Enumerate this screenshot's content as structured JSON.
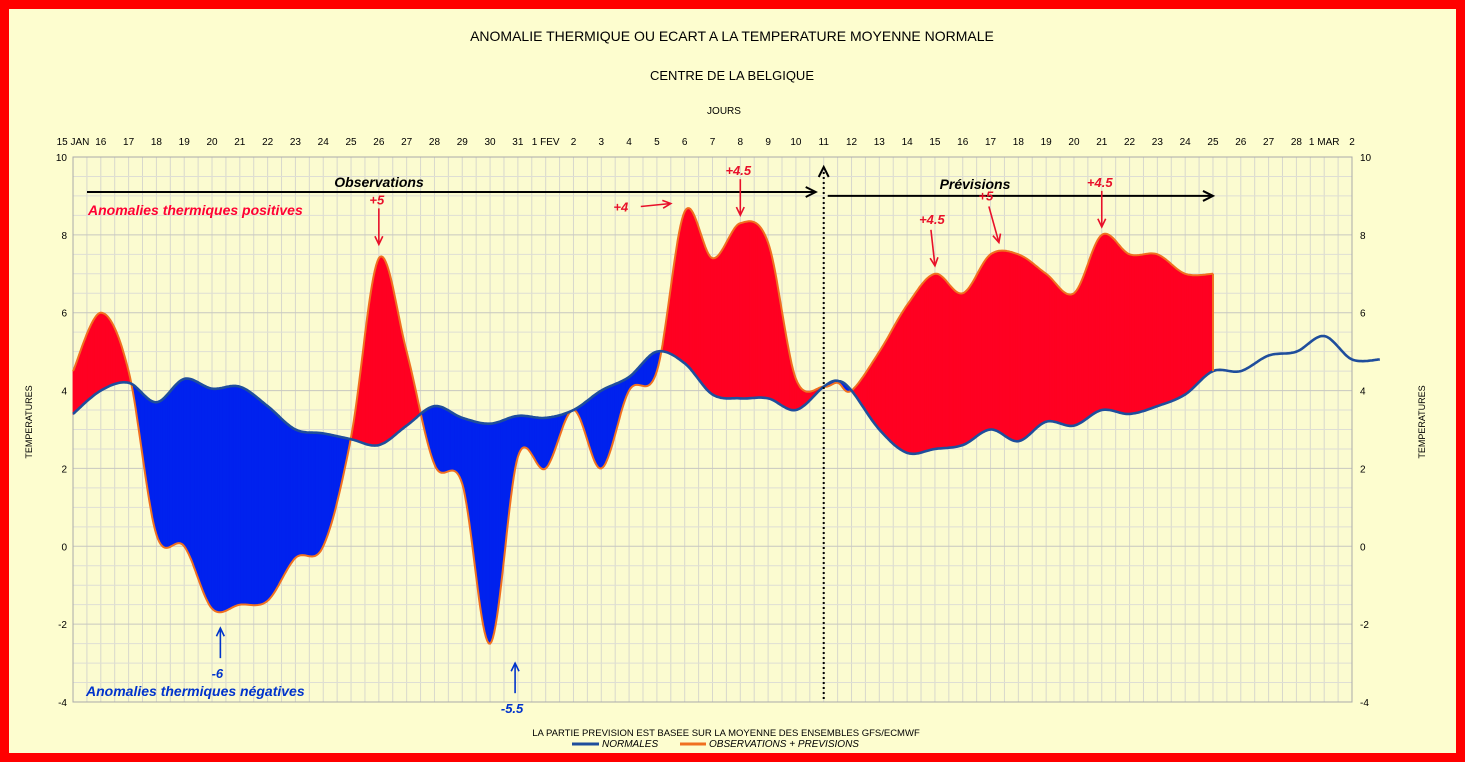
{
  "chart_data": {
    "type": "area",
    "title": "ANOMALIE THERMIQUE OU ECART A LA TEMPERATURE MOYENNE NORMALE",
    "subtitle": "CENTRE DE LA BELGIQUE",
    "xlabel": "JOURS",
    "ylabel": "TEMPERATURES",
    "ylim": [
      -4,
      10
    ],
    "yticks": [
      -4,
      -2,
      0,
      2,
      4,
      6,
      8,
      10
    ],
    "grid": true,
    "x_tick_labels": [
      "15 JAN",
      "16",
      "17",
      "18",
      "19",
      "20",
      "21",
      "22",
      "23",
      "24",
      "25",
      "26",
      "27",
      "28",
      "29",
      "30",
      "31",
      "1 FEV",
      "2",
      "3",
      "4",
      "5",
      "6",
      "7",
      "8",
      "9",
      "10",
      "11",
      "12",
      "13",
      "14",
      "15",
      "16",
      "17",
      "18",
      "19",
      "20",
      "21",
      "22",
      "23",
      "24",
      "25",
      "26",
      "27",
      "28",
      "1 MAR",
      "2"
    ],
    "x_range": [
      0,
      46
    ],
    "forecast_start": 27,
    "series": [
      {
        "name": "NORMALES",
        "color": "#1f4e9c",
        "points": [
          [
            0,
            3.4
          ],
          [
            1,
            4.0
          ],
          [
            2,
            4.2
          ],
          [
            3,
            3.7
          ],
          [
            4,
            4.3
          ],
          [
            5,
            4.05
          ],
          [
            6,
            4.1
          ],
          [
            7,
            3.6
          ],
          [
            8,
            3.0
          ],
          [
            9,
            2.9
          ],
          [
            10,
            2.75
          ],
          [
            11,
            2.6
          ],
          [
            12,
            3.1
          ],
          [
            13,
            3.6
          ],
          [
            14,
            3.3
          ],
          [
            15,
            3.15
          ],
          [
            16,
            3.35
          ],
          [
            17,
            3.3
          ],
          [
            18,
            3.5
          ],
          [
            19,
            4.0
          ],
          [
            20,
            4.35
          ],
          [
            21,
            5.0
          ],
          [
            22,
            4.7
          ],
          [
            23,
            3.9
          ],
          [
            24,
            3.8
          ],
          [
            25,
            3.8
          ],
          [
            26,
            3.5
          ],
          [
            27,
            4.1
          ],
          [
            27.5,
            4.25
          ],
          [
            28,
            4.0
          ],
          [
            29,
            3.0
          ],
          [
            30,
            2.4
          ],
          [
            31,
            2.5
          ],
          [
            32,
            2.6
          ],
          [
            33,
            3.0
          ],
          [
            34,
            2.7
          ],
          [
            35,
            3.2
          ],
          [
            36,
            3.1
          ],
          [
            37,
            3.5
          ],
          [
            38,
            3.4
          ],
          [
            39,
            3.6
          ],
          [
            40,
            3.9
          ],
          [
            41,
            4.5
          ],
          [
            42,
            4.5
          ],
          [
            43,
            4.9
          ],
          [
            44,
            5.0
          ],
          [
            45,
            5.4
          ],
          [
            46,
            4.8
          ],
          [
            47,
            4.8
          ]
        ]
      },
      {
        "name": "OBSERVATIONS + PREVISIONS",
        "color": "#f07020",
        "points": [
          [
            0,
            4.5
          ],
          [
            1,
            6.0
          ],
          [
            2,
            4.5
          ],
          [
            3,
            0.3
          ],
          [
            4,
            0.0
          ],
          [
            5,
            -1.6
          ],
          [
            6,
            -1.5
          ],
          [
            7,
            -1.4
          ],
          [
            8,
            -0.3
          ],
          [
            9,
            0.0
          ],
          [
            10,
            2.8
          ],
          [
            11,
            7.4
          ],
          [
            12,
            5.0
          ],
          [
            13,
            2.1
          ],
          [
            14,
            1.6
          ],
          [
            15,
            -2.5
          ],
          [
            16,
            2.3
          ],
          [
            17,
            2.0
          ],
          [
            18,
            3.5
          ],
          [
            19,
            2.0
          ],
          [
            20,
            4.0
          ],
          [
            21,
            4.5
          ],
          [
            22,
            8.6
          ],
          [
            23,
            7.4
          ],
          [
            24,
            8.3
          ],
          [
            25,
            7.8
          ],
          [
            26,
            4.3
          ],
          [
            27,
            4.1
          ],
          [
            27.5,
            4.2
          ],
          [
            28,
            4.0
          ],
          [
            29,
            5.0
          ],
          [
            30,
            6.2
          ],
          [
            31,
            7.0
          ],
          [
            32,
            6.5
          ],
          [
            33,
            7.5
          ],
          [
            34,
            7.5
          ],
          [
            35,
            7.0
          ],
          [
            36,
            6.5
          ],
          [
            37,
            8.0
          ],
          [
            38,
            7.5
          ],
          [
            39,
            7.5
          ],
          [
            40,
            7.0
          ],
          [
            41,
            7.0
          ]
        ]
      }
    ],
    "annotations": {
      "observations": "Observations",
      "previsions": "Prévisions",
      "pos_label": "Anomalies thermiques positives",
      "neg_label": "Anomalies thermiques négatives",
      "pos": [
        {
          "text": "+5",
          "x": 11,
          "y": 7.55
        },
        {
          "text": "+4",
          "x": 21.5,
          "y": 8.6
        },
        {
          "text": "+4.5",
          "x": 24,
          "y": 8.3
        },
        {
          "text": "+4.5",
          "x": 31,
          "y": 7.0
        },
        {
          "text": "+5",
          "x": 33.3,
          "y": 7.6
        },
        {
          "text": "+4.5",
          "x": 37,
          "y": 8.0
        }
      ],
      "neg": [
        {
          "text": "-6",
          "x": 5.3,
          "y": -2.0
        },
        {
          "text": "-5.5",
          "x": 15.9,
          "y": -2.9
        }
      ]
    },
    "fill_colors": {
      "positive": "#ff0022",
      "negative": "#0022ee"
    },
    "legend": [
      "NORMALES",
      "OBSERVATIONS + PREVISIONS"
    ],
    "legend_position": "bottom",
    "footer_note": "LA PARTIE PREVISION EST BASEE SUR LA MOYENNE DES ENSEMBLES GFS/ECMWF"
  }
}
